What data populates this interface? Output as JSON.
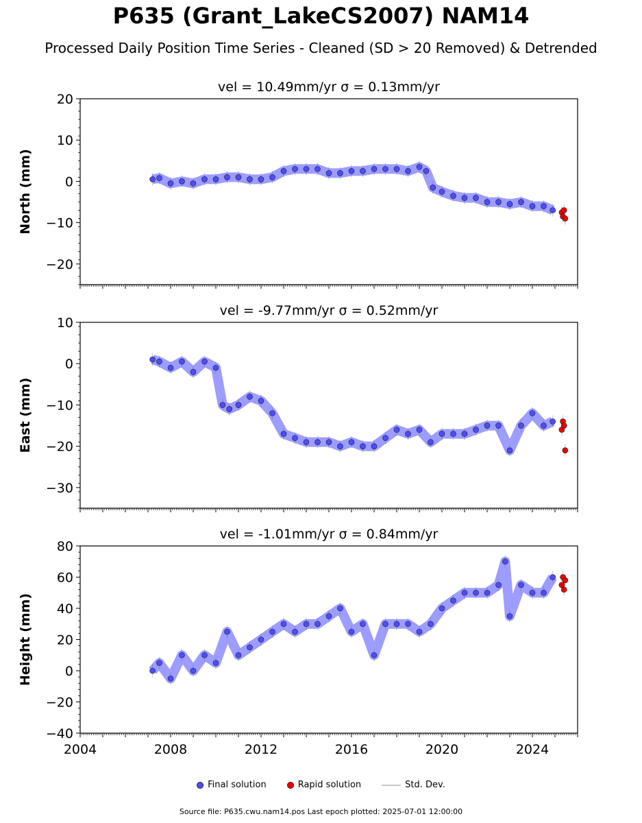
{
  "title": "P635 (Grant_LakeCS2007) NAM14",
  "subtitle": "Processed Daily Position Time Series - Cleaned (SD > 20 Removed) & Detrended",
  "legend": {
    "final": "Final solution",
    "rapid": "Rapid solution",
    "std": "Std. Dev."
  },
  "footer": "Source file: P635.cwu.nam14.pos  Last epoch plotted: 2025-07-01 12:00:00",
  "colors": {
    "final": "#4d4dff",
    "rapid": "#ee0000",
    "std_dev": "#c8c8c8"
  },
  "chart_data": [
    {
      "type": "scatter",
      "title": "vel = 10.49mm/yr   σ = 0.13mm/yr",
      "ylabel": "North (mm)",
      "xlim": [
        2004,
        2026
      ],
      "ylim": [
        -25,
        20
      ],
      "yticks": [
        -20,
        -10,
        0,
        10,
        20
      ],
      "xticks": [
        2004,
        2008,
        2012,
        2016,
        2020,
        2024
      ],
      "show_xtick_labels": false,
      "series": [
        {
          "name": "Final solution",
          "x": [
            2007.2,
            2007.5,
            2008.0,
            2008.5,
            2009.0,
            2009.5,
            2010.0,
            2010.5,
            2011.0,
            2011.5,
            2012.0,
            2012.5,
            2013.0,
            2013.5,
            2014.0,
            2014.5,
            2015.0,
            2015.5,
            2016.0,
            2016.5,
            2017.0,
            2017.5,
            2018.0,
            2018.5,
            2019.0,
            2019.3,
            2019.6,
            2020.0,
            2020.5,
            2021.0,
            2021.5,
            2022.0,
            2022.5,
            2023.0,
            2023.5,
            2024.0,
            2024.5,
            2024.9
          ],
          "y": [
            0.5,
            0.8,
            -0.5,
            0.0,
            -0.5,
            0.5,
            0.5,
            1.0,
            1.0,
            0.5,
            0.5,
            1.0,
            2.5,
            3.0,
            3.0,
            3.0,
            2.0,
            2.0,
            2.5,
            2.5,
            3.0,
            3.0,
            3.0,
            2.5,
            3.5,
            2.5,
            -1.5,
            -2.5,
            -3.5,
            -4.0,
            -4.0,
            -5.0,
            -5.0,
            -5.5,
            -5.0,
            -6.0,
            -6.0,
            -7.0
          ]
        },
        {
          "name": "Rapid solution",
          "x": [
            2025.3,
            2025.35,
            2025.4,
            2025.45
          ],
          "y": [
            -7.5,
            -8.5,
            -7.0,
            -9.0
          ]
        }
      ]
    },
    {
      "type": "scatter",
      "title": "vel = -9.77mm/yr   σ = 0.52mm/yr",
      "ylabel": "East (mm)",
      "xlim": [
        2004,
        2026
      ],
      "ylim": [
        -35,
        10
      ],
      "yticks": [
        -30,
        -20,
        -10,
        0,
        10
      ],
      "xticks": [
        2004,
        2008,
        2012,
        2016,
        2020,
        2024
      ],
      "show_xtick_labels": false,
      "series": [
        {
          "name": "Final solution",
          "x": [
            2007.2,
            2007.5,
            2008.0,
            2008.5,
            2009.0,
            2009.5,
            2010.0,
            2010.3,
            2010.6,
            2011.0,
            2011.5,
            2012.0,
            2012.5,
            2013.0,
            2013.5,
            2014.0,
            2014.5,
            2015.0,
            2015.5,
            2016.0,
            2016.5,
            2017.0,
            2017.5,
            2018.0,
            2018.5,
            2019.0,
            2019.5,
            2020.0,
            2020.5,
            2021.0,
            2021.5,
            2022.0,
            2022.5,
            2023.0,
            2023.5,
            2024.0,
            2024.5,
            2024.9
          ],
          "y": [
            1.0,
            0.5,
            -1.0,
            0.5,
            -2.0,
            0.5,
            -1.0,
            -10.0,
            -11.0,
            -10.0,
            -8.0,
            -9.0,
            -12.0,
            -17.0,
            -18.0,
            -19.0,
            -19.0,
            -19.0,
            -20.0,
            -19.0,
            -20.0,
            -20.0,
            -18.0,
            -16.0,
            -17.0,
            -16.0,
            -19.0,
            -17.0,
            -17.0,
            -17.0,
            -16.0,
            -15.0,
            -15.0,
            -21.0,
            -15.0,
            -12.0,
            -15.0,
            -14.0
          ]
        },
        {
          "name": "Rapid solution",
          "x": [
            2025.3,
            2025.35,
            2025.4,
            2025.45
          ],
          "y": [
            -16.0,
            -14.0,
            -15.0,
            -21.0
          ]
        }
      ]
    },
    {
      "type": "scatter",
      "title": "vel = -1.01mm/yr   σ = 0.84mm/yr",
      "ylabel": "Height (mm)",
      "xlim": [
        2004,
        2026
      ],
      "ylim": [
        -40,
        80
      ],
      "yticks": [
        -40,
        -20,
        0,
        20,
        40,
        60,
        80
      ],
      "xticks": [
        2004,
        2008,
        2012,
        2016,
        2020,
        2024
      ],
      "show_xtick_labels": true,
      "series": [
        {
          "name": "Final solution",
          "x": [
            2007.2,
            2007.5,
            2008.0,
            2008.5,
            2009.0,
            2009.5,
            2010.0,
            2010.5,
            2011.0,
            2011.5,
            2012.0,
            2012.5,
            2013.0,
            2013.5,
            2014.0,
            2014.5,
            2015.0,
            2015.5,
            2016.0,
            2016.5,
            2017.0,
            2017.5,
            2018.0,
            2018.5,
            2019.0,
            2019.5,
            2020.0,
            2020.5,
            2021.0,
            2021.5,
            2022.0,
            2022.5,
            2022.8,
            2023.0,
            2023.5,
            2024.0,
            2024.5,
            2024.9
          ],
          "y": [
            0.0,
            5.0,
            -5.0,
            10.0,
            0.0,
            10.0,
            5.0,
            25.0,
            10.0,
            15.0,
            20.0,
            25.0,
            30.0,
            25.0,
            30.0,
            30.0,
            35.0,
            40.0,
            25.0,
            30.0,
            10.0,
            30.0,
            30.0,
            30.0,
            25.0,
            30.0,
            40.0,
            45.0,
            50.0,
            50.0,
            50.0,
            55.0,
            70.0,
            35.0,
            55.0,
            50.0,
            50.0,
            60.0
          ]
        },
        {
          "name": "Rapid solution",
          "x": [
            2025.3,
            2025.35,
            2025.4,
            2025.45
          ],
          "y": [
            55.0,
            60.0,
            52.0,
            58.0
          ]
        }
      ]
    }
  ]
}
